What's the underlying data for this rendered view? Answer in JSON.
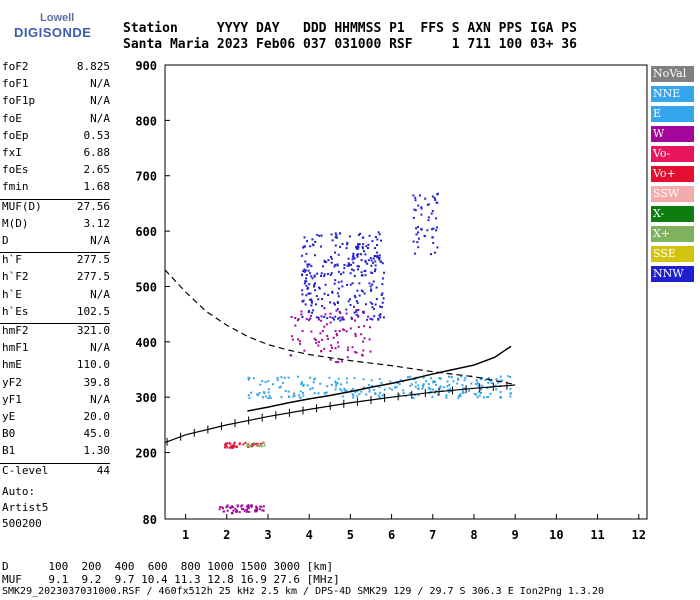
{
  "logo": {
    "line1": "Lowell",
    "line2": "DIGISONDE"
  },
  "header": {
    "row1": "Station     YYYY DAY   DDD HHMMSS P1  FFS S AXN PPS IGA PS",
    "row2": "Santa Maria 2023 Feb06 037 031000 RSF     1 711 100 03+ 36"
  },
  "params": [
    {
      "k": "foF2",
      "v": "8.825"
    },
    {
      "k": "foF1",
      "v": "N/A"
    },
    {
      "k": "foF1p",
      "v": "N/A"
    },
    {
      "k": "foE",
      "v": "N/A"
    },
    {
      "k": "foEp",
      "v": "0.53"
    },
    {
      "k": "fxI",
      "v": "6.88"
    },
    {
      "k": "foEs",
      "v": "2.65"
    },
    {
      "k": "fmin",
      "v": "1.68"
    },
    {
      "k": "MUF(D)",
      "v": "27.56"
    },
    {
      "k": "M(D)",
      "v": "3.12"
    },
    {
      "k": "D",
      "v": "N/A"
    },
    {
      "k": "h`F",
      "v": "277.5"
    },
    {
      "k": "h`F2",
      "v": "277.5"
    },
    {
      "k": "h`E",
      "v": "N/A"
    },
    {
      "k": "h`Es",
      "v": "102.5"
    },
    {
      "k": "hmF2",
      "v": "321.0"
    },
    {
      "k": "hmF1",
      "v": "N/A"
    },
    {
      "k": "hmE",
      "v": "110.0"
    },
    {
      "k": "yF2",
      "v": "39.8"
    },
    {
      "k": "yF1",
      "v": "N/A"
    },
    {
      "k": "yE",
      "v": "20.0"
    },
    {
      "k": "B0",
      "v": "45.0"
    },
    {
      "k": "B1",
      "v": "1.30"
    },
    {
      "k": "C-level",
      "v": "44"
    }
  ],
  "auto": {
    "l1": "Auto:",
    "l2": "Artist5",
    "l3": "500200"
  },
  "legend": [
    {
      "label": "NoVal",
      "color": "#808080"
    },
    {
      "label": "NNE",
      "color": "#35a6ee"
    },
    {
      "label": "E",
      "color": "#35a6ee"
    },
    {
      "label": "W",
      "color": "#a3069b"
    },
    {
      "label": "Vo-",
      "color": "#e8175d"
    },
    {
      "label": "Vo+",
      "color": "#e40f2f"
    },
    {
      "label": "SSW",
      "color": "#f3aaaa"
    },
    {
      "label": "X-",
      "color": "#0f7c0f"
    },
    {
      "label": "X+",
      "color": "#7fb15f"
    },
    {
      "label": "SSE",
      "color": "#d2c30c"
    },
    {
      "label": "NNW",
      "color": "#2020d0"
    }
  ],
  "footer": {
    "d_row": "D      100  200  400  600  800 1000 1500 3000 [km]",
    "muf_row": "MUF    9.1  9.2  9.7 10.4 11.3 12.8 16.9 27.6 [MHz]",
    "file_row": "SMK29_2023037031000.RSF / 460fx512h 25 kHz 2.5 km / DPS-4D SMK29 129 / 29.7 S 306.3 E Ion2Png 1.3.20"
  },
  "chart_data": {
    "type": "scatter",
    "xlabel": "",
    "ylabel": "",
    "xlim": [
      0.5,
      12.2
    ],
    "ylim": [
      80,
      900
    ],
    "xticks": [
      1,
      2,
      3,
      4,
      5,
      6,
      7,
      8,
      9,
      10,
      11,
      12
    ],
    "yticks": [
      80,
      200,
      300,
      400,
      500,
      600,
      700,
      800,
      900
    ],
    "series": [
      {
        "name": "profile",
        "x": [
          0.5,
          1,
          2,
          3,
          4,
          5,
          6,
          7,
          8,
          9
        ],
        "y": [
          218,
          232,
          250,
          265,
          278,
          290,
          300,
          309,
          316,
          322
        ]
      },
      {
        "name": "trace",
        "x": [
          2.5,
          3.0,
          3.5,
          4.0,
          4.5,
          5.0,
          5.5,
          6.0,
          6.5,
          7.0,
          7.5,
          8.0,
          8.5,
          8.9
        ],
        "y": [
          275,
          282,
          290,
          297,
          303,
          310,
          318,
          325,
          333,
          342,
          350,
          358,
          372,
          392
        ]
      },
      {
        "name": "dashed",
        "x": [
          0.5,
          1.0,
          1.5,
          2.0,
          2.5,
          3.0,
          3.5,
          4.0,
          5.0,
          6.0,
          7.0,
          8.0,
          9.0
        ],
        "y": [
          530,
          490,
          455,
          430,
          410,
          395,
          385,
          377,
          366,
          357,
          346,
          337,
          323
        ]
      }
    ],
    "clusters": [
      {
        "x0": 2.5,
        "x1": 8.9,
        "y0": 300,
        "y1": 340,
        "color": "#35a6ee",
        "n": 260
      },
      {
        "x0": 3.8,
        "x1": 5.8,
        "y0": 440,
        "y1": 600,
        "color": "#2020d0",
        "n": 300
      },
      {
        "x0": 3.5,
        "x1": 5.5,
        "y0": 365,
        "y1": 460,
        "color": "#a3069b",
        "n": 90
      },
      {
        "x0": 6.5,
        "x1": 7.1,
        "y0": 560,
        "y1": 670,
        "color": "#2020d0",
        "n": 50
      },
      {
        "x0": 1.9,
        "x1": 2.9,
        "y0": 210,
        "y1": 220,
        "color": "#e40f2f",
        "n": 40
      },
      {
        "x0": 2.4,
        "x1": 2.9,
        "y0": 212,
        "y1": 220,
        "color": "#7fb15f",
        "n": 15
      },
      {
        "x0": 1.8,
        "x1": 2.9,
        "y0": 92,
        "y1": 107,
        "color": "#a3069b",
        "n": 60
      }
    ]
  }
}
